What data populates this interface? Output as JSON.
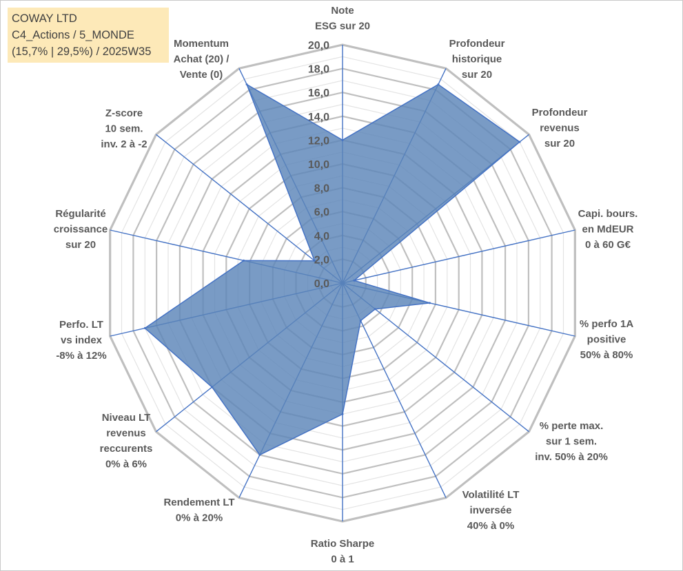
{
  "header": {
    "company": "COWAY LTD",
    "category": "C4_Actions / 5_MONDE",
    "stats": "(15,7% | 29,5%) / 2025W35"
  },
  "colors": {
    "fill": "#5b85b8",
    "stroke": "#4472c4",
    "axis": "#4472c4",
    "grid_major": "#bfbfbf",
    "grid_minor": "#e3e3e3",
    "label_bg": "#fde9b8"
  },
  "chart_data": {
    "type": "radar",
    "r_range": [
      0,
      20
    ],
    "tick_step": 2,
    "tick_labels": [
      "0,0",
      "2,0",
      "4,0",
      "6,0",
      "8,0",
      "10,0",
      "12,0",
      "14,0",
      "16,0",
      "18,0",
      "20,0"
    ],
    "axes": [
      {
        "label": [
          "Note",
          "ESG sur 20"
        ],
        "value": 12.0
      },
      {
        "label": [
          "Profondeur",
          "historique",
          "sur 20"
        ],
        "value": 18.5
      },
      {
        "label": [
          "Profondeur",
          "revenus",
          "sur 20"
        ],
        "value": 19.0
      },
      {
        "label": [
          "Capi. bours.",
          "en MdEUR",
          "0 à 60 G€"
        ],
        "value": 1.0
      },
      {
        "label": [
          "% perfo 1A",
          "positive",
          "50% à 80%"
        ],
        "value": 7.5
      },
      {
        "label": [
          "% perte max.",
          "sur 1 sem.",
          "inv. 50% à 20%"
        ],
        "value": 3.5
      },
      {
        "label": [
          "Volatilité LT",
          "inversée",
          "40% à 0%"
        ],
        "value": 3.5
      },
      {
        "label": [
          "Ratio Sharpe",
          "0 à 1"
        ],
        "value": 11.0
      },
      {
        "label": [
          "Rendement LT",
          "0% à 20%"
        ],
        "value": 16.0
      },
      {
        "label": [
          "Niveau LT",
          "revenus",
          "reccurents",
          "0% à 6%"
        ],
        "value": 14.0
      },
      {
        "label": [
          "Perfo. LT",
          "vs index",
          "-8% à 12%"
        ],
        "value": 17.0
      },
      {
        "label": [
          "Régularité",
          "croissance",
          "sur 20"
        ],
        "value": 8.5
      },
      {
        "label": [
          "Z-score",
          "10 sem.",
          "inv. 2 à -2"
        ],
        "value": 3.0
      },
      {
        "label": [
          "Momentum",
          "Achat (20) /",
          "Vente (0)"
        ],
        "value": 18.5
      }
    ]
  }
}
